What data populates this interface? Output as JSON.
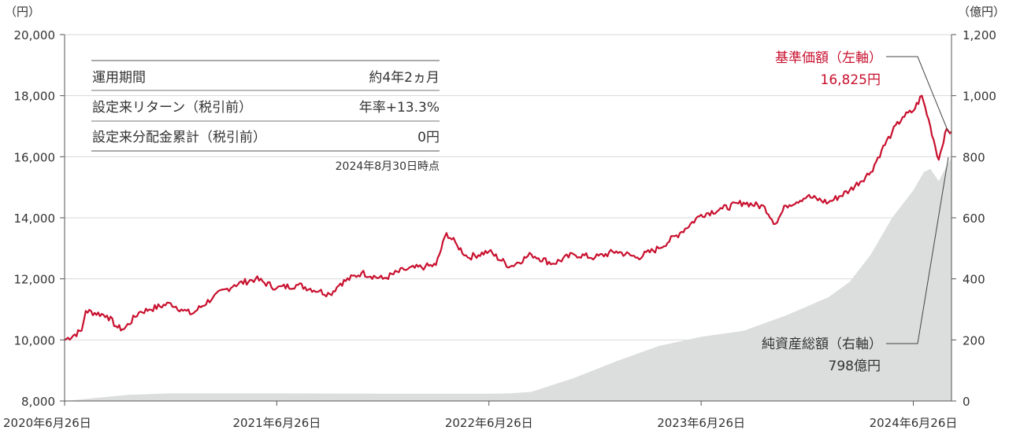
{
  "chart_data": {
    "type": "line",
    "left_unit": "（円）",
    "right_unit": "（億円）",
    "left_ylim": [
      8000,
      20000
    ],
    "left_ticks": [
      "20,000",
      "18,000",
      "16,000",
      "14,000",
      "12,000",
      "10,000",
      "8,000"
    ],
    "left_tick_values": [
      20000,
      18000,
      16000,
      14000,
      12000,
      10000,
      8000
    ],
    "right_ylim": [
      0,
      1200
    ],
    "right_ticks": [
      "1,200",
      "1,000",
      "800",
      "600",
      "400",
      "200",
      "0"
    ],
    "right_tick_values": [
      1200,
      1000,
      800,
      600,
      400,
      200,
      0
    ],
    "x_ticks": [
      "2020年6月26日",
      "2021年6月26日",
      "2022年6月26日",
      "2023年6月26日",
      "2024年6月26日"
    ],
    "x_tick_years": [
      0,
      1,
      2,
      3,
      4
    ],
    "x_range_years": [
      0,
      4.18
    ],
    "grid": true,
    "series": [
      {
        "name": "基準価額（左軸）",
        "axis": "left",
        "color": "#c8102e",
        "x_years": [
          0,
          0.08,
          0.1,
          0.2,
          0.25,
          0.28,
          0.35,
          0.4,
          0.5,
          0.55,
          0.6,
          0.7,
          0.8,
          0.9,
          1.0,
          1.1,
          1.2,
          1.25,
          1.3,
          1.4,
          1.5,
          1.6,
          1.7,
          1.75,
          1.8,
          1.85,
          1.9,
          2.0,
          2.1,
          2.2,
          2.3,
          2.4,
          2.5,
          2.6,
          2.7,
          2.8,
          2.9,
          3.0,
          3.1,
          3.2,
          3.3,
          3.35,
          3.4,
          3.5,
          3.6,
          3.7,
          3.8,
          3.85,
          3.9,
          3.95,
          4.0,
          4.04,
          4.08,
          4.12,
          4.15,
          4.18
        ],
        "values": [
          10000,
          10300,
          10950,
          10800,
          10400,
          10350,
          10900,
          11000,
          11200,
          11000,
          10850,
          11400,
          11800,
          12000,
          11700,
          11800,
          11600,
          11500,
          11850,
          12200,
          12000,
          12300,
          12400,
          12450,
          13500,
          13100,
          12700,
          12900,
          12400,
          12800,
          12500,
          12800,
          12700,
          12900,
          12700,
          13000,
          13500,
          14100,
          14300,
          14500,
          14350,
          13800,
          14400,
          14700,
          14500,
          14900,
          15500,
          16200,
          16800,
          17300,
          17500,
          18000,
          17000,
          15900,
          16800,
          16825
        ]
      },
      {
        "name": "純資産総額（右軸）",
        "axis": "right",
        "color": "#dcdddd",
        "x_years": [
          0,
          0.3,
          0.5,
          1.0,
          1.5,
          2.0,
          2.1,
          2.2,
          2.4,
          2.6,
          2.8,
          3.0,
          3.2,
          3.4,
          3.6,
          3.7,
          3.8,
          3.9,
          4.0,
          4.05,
          4.08,
          4.12,
          4.15,
          4.18
        ],
        "values": [
          0,
          20,
          25,
          25,
          24,
          24,
          25,
          30,
          75,
          130,
          180,
          210,
          230,
          280,
          340,
          390,
          480,
          600,
          690,
          750,
          760,
          720,
          760,
          798
        ]
      }
    ]
  },
  "annotations": {
    "nav_label": "基準価額（左軸）",
    "nav_value": "16,825円",
    "aum_label": "純資産総額（右軸）",
    "aum_value": "798億円"
  },
  "info_table": {
    "rows": [
      {
        "label": "運用期間",
        "value": "約4年2ヵ月"
      },
      {
        "label": "設定来リターン（税引前）",
        "value": "年率+13.3%"
      },
      {
        "label": "設定来分配金累計（税引前）",
        "value": "0円"
      }
    ],
    "note": "2024年8月30日時点"
  }
}
